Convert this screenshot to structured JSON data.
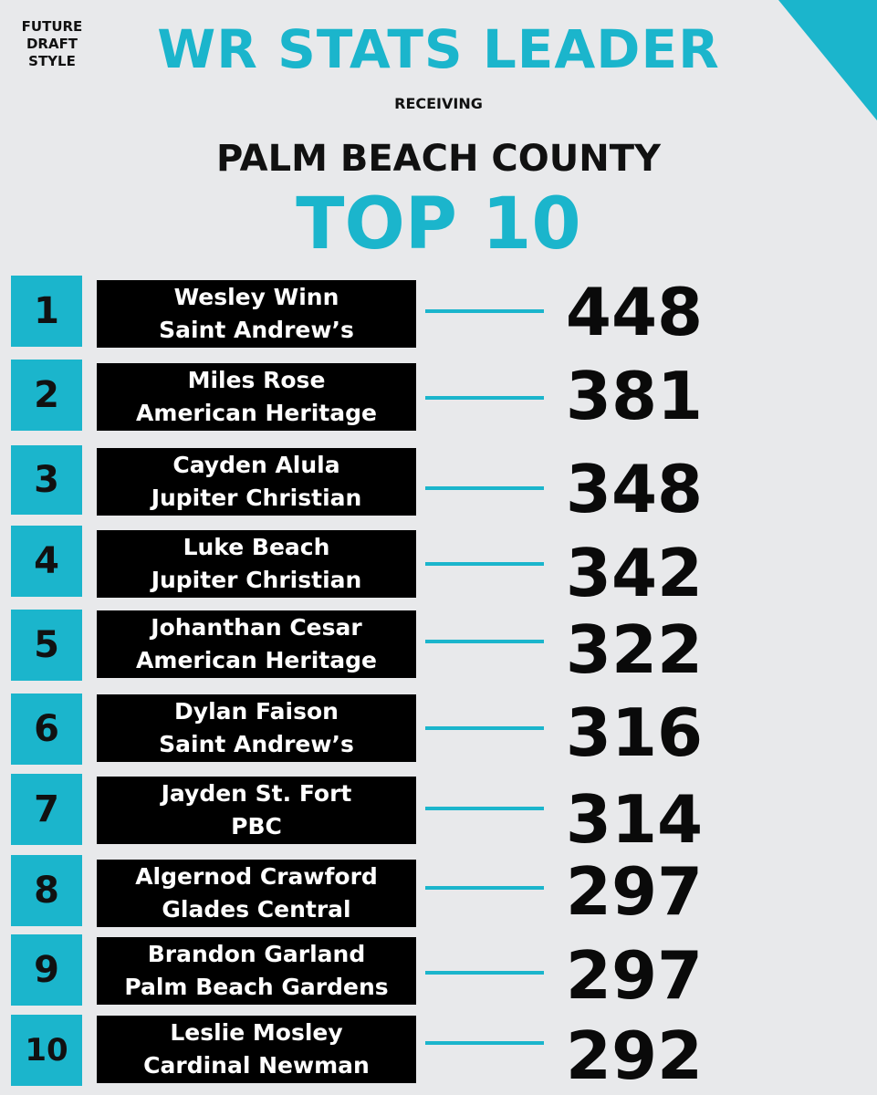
{
  "brand": {
    "line1": "FUTURE",
    "line2": "DRAFT",
    "line3": "STYLE"
  },
  "header": {
    "title": "WR STATS LEADER",
    "subtitle": "RECEIVING",
    "region": "PALM BEACH COUNTY",
    "heading": "TOP 10"
  },
  "colors": {
    "accent": "#1bb5cc",
    "background": "#e8e9eb",
    "box": "#000000"
  },
  "leaders": [
    {
      "rank": "1",
      "name": "Wesley Winn",
      "school": "Saint Andrew’s",
      "yards": "448"
    },
    {
      "rank": "2",
      "name": "Miles Rose",
      "school": "American Heritage",
      "yards": "381"
    },
    {
      "rank": "3",
      "name": "Cayden Alula",
      "school": "Jupiter Christian",
      "yards": "348"
    },
    {
      "rank": "4",
      "name": "Luke Beach",
      "school": "Jupiter Christian",
      "yards": "342"
    },
    {
      "rank": "5",
      "name": "Johanthan Cesar",
      "school": "American Heritage",
      "yards": "322"
    },
    {
      "rank": "6",
      "name": "Dylan Faison",
      "school": "Saint Andrew’s",
      "yards": "316"
    },
    {
      "rank": "7",
      "name": "Jayden St. Fort",
      "school": "PBC",
      "yards": "314"
    },
    {
      "rank": "8",
      "name": "Algernod Crawford",
      "school": "Glades Central",
      "yards": "297"
    },
    {
      "rank": "9",
      "name": "Brandon Garland",
      "school": "Palm Beach Gardens",
      "yards": "297"
    },
    {
      "rank": "10",
      "name": "Leslie Mosley",
      "school": "Cardinal Newman",
      "yards": "292"
    }
  ]
}
